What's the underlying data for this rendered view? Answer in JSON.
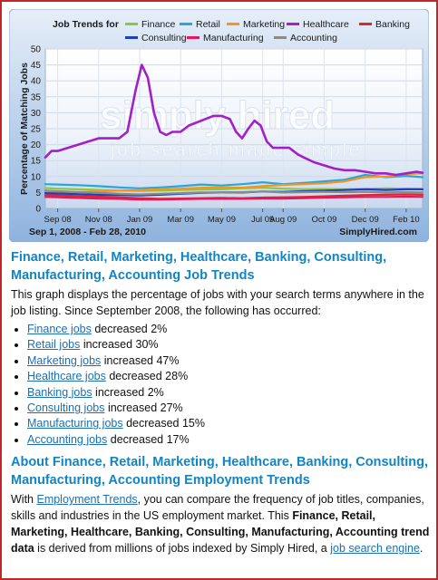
{
  "chart_data": {
    "type": "line",
    "legend_title": "Job Trends for",
    "legend_placement": "top",
    "ylabel": "Percentage of Matching Jobs",
    "ylim": [
      0,
      50
    ],
    "yticks": [
      0,
      5,
      10,
      15,
      20,
      25,
      30,
      35,
      40,
      45,
      50
    ],
    "x_tick_labels": [
      "Sep 08",
      "Nov 08",
      "Jan 09",
      "Mar 09",
      "May 09",
      "Jul 09",
      "Aug 09",
      "Oct 09",
      "Dec 09",
      "Feb 10"
    ],
    "x_tick_months": [
      0,
      2,
      4,
      6,
      8,
      10,
      11,
      13,
      15,
      17
    ],
    "xlim_months": [
      -0.6,
      17.8
    ],
    "date_range": "Sep 1, 2008 - Feb 28, 2010",
    "brand": "SimplyHired.com",
    "watermark": "simply hired",
    "watermark_tagline": "job search made simple",
    "grid": true,
    "series": [
      {
        "name": "Finance",
        "color": "#8dc63f",
        "x": [
          -0.6,
          0,
          1,
          2,
          3,
          4,
          5,
          6,
          7,
          8,
          9,
          10,
          11,
          12,
          13,
          14,
          15,
          16,
          17,
          17.8
        ],
        "values": [
          6.4,
          6.2,
          6.0,
          5.8,
          5.6,
          5.5,
          5.6,
          5.8,
          5.9,
          6.0,
          6.3,
          6.5,
          6.2,
          6.0,
          6.1,
          6.0,
          6.1,
          6.3,
          6.2,
          6.1
        ]
      },
      {
        "name": "Retail",
        "color": "#29a6d8",
        "x": [
          -0.6,
          0,
          1,
          2,
          3,
          4,
          5,
          6,
          7,
          8,
          9,
          10,
          11,
          12,
          13,
          14,
          15,
          16,
          17,
          17.8
        ],
        "values": [
          7.6,
          7.5,
          7.3,
          7.0,
          6.6,
          6.3,
          6.6,
          7.0,
          7.5,
          7.2,
          7.6,
          8.2,
          7.6,
          8.0,
          8.5,
          9.0,
          10.5,
          9.8,
          10.2,
          9.8
        ]
      },
      {
        "name": "Marketing",
        "color": "#f7941d",
        "x": [
          -0.6,
          0,
          1,
          2,
          3,
          4,
          5,
          6,
          7,
          8,
          9,
          10,
          11,
          12,
          13,
          14,
          15,
          16,
          17,
          17.8
        ],
        "values": [
          5.2,
          5.0,
          5.1,
          5.3,
          5.6,
          5.7,
          6.0,
          6.2,
          6.5,
          6.6,
          6.5,
          7.0,
          7.4,
          7.6,
          7.9,
          8.5,
          9.8,
          10.0,
          10.8,
          11.0
        ]
      },
      {
        "name": "Healthcare",
        "color": "#a31fc7",
        "x": [
          -0.6,
          -0.3,
          0,
          0.5,
          1,
          1.5,
          2,
          2.5,
          3,
          3.4,
          3.8,
          4.1,
          4.4,
          4.7,
          5.0,
          5.3,
          5.6,
          6.0,
          6.4,
          6.8,
          7.2,
          7.6,
          8.0,
          8.4,
          8.7,
          9.0,
          9.3,
          9.6,
          9.9,
          10.2,
          10.5,
          10.9,
          11.3,
          11.7,
          12.0,
          12.5,
          13.0,
          13.5,
          14.0,
          14.5,
          15.0,
          15.5,
          16.0,
          16.5,
          17.0,
          17.5,
          17.8
        ],
        "values": [
          16,
          18,
          18,
          19,
          20,
          21,
          22,
          22,
          22,
          24,
          37,
          45,
          41,
          30,
          24,
          23,
          24,
          24,
          26,
          27,
          28,
          29,
          29,
          28,
          24,
          22,
          25,
          27.5,
          26,
          21,
          19,
          19,
          19,
          17,
          16,
          14.5,
          13.5,
          12.5,
          12,
          12,
          11.5,
          11,
          11,
          10.5,
          11,
          11.5,
          11.2
        ]
      },
      {
        "name": "Banking",
        "color": "#d7282f",
        "x": [
          -0.6,
          0,
          1,
          2,
          3,
          4,
          5,
          6,
          7,
          8,
          9,
          10,
          11,
          12,
          13,
          14,
          15,
          16,
          17,
          17.8
        ],
        "values": [
          4.2,
          4.1,
          3.9,
          3.7,
          3.5,
          3.2,
          3.0,
          3.1,
          3.2,
          3.3,
          3.2,
          3.4,
          3.5,
          3.6,
          3.8,
          4.0,
          4.2,
          4.3,
          4.4,
          4.3
        ]
      },
      {
        "name": "Consulting",
        "color": "#1f3fbf",
        "x": [
          -0.6,
          0,
          1,
          2,
          3,
          4,
          5,
          6,
          7,
          8,
          9,
          10,
          11,
          12,
          13,
          14,
          15,
          16,
          17,
          17.8
        ],
        "values": [
          4.8,
          4.7,
          4.5,
          4.3,
          4.2,
          4.1,
          4.3,
          4.6,
          4.9,
          5.0,
          5.0,
          5.3,
          5.2,
          5.4,
          5.6,
          5.8,
          6.0,
          5.8,
          6.0,
          6.0
        ]
      },
      {
        "name": "Manufacturing",
        "color": "#e8175d",
        "x": [
          -0.6,
          0,
          1,
          2,
          3,
          4,
          5,
          6,
          7,
          8,
          9,
          10,
          11,
          12,
          13,
          14,
          15,
          16,
          17,
          17.8
        ],
        "values": [
          3.6,
          3.5,
          3.3,
          3.1,
          3.0,
          2.8,
          2.8,
          2.9,
          3.0,
          3.0,
          3.0,
          3.1,
          3.1,
          3.2,
          3.4,
          3.5,
          3.6,
          3.6,
          3.7,
          3.6
        ]
      },
      {
        "name": "Accounting",
        "color": "#8a8a8a",
        "x": [
          -0.6,
          0,
          1,
          2,
          3,
          4,
          5,
          6,
          7,
          8,
          9,
          10,
          11,
          12,
          13,
          14,
          15,
          16,
          17,
          17.8
        ],
        "values": [
          5.6,
          5.4,
          5.1,
          4.9,
          4.6,
          4.4,
          4.6,
          4.8,
          5.0,
          5.0,
          5.1,
          5.3,
          5.0,
          5.1,
          5.2,
          5.1,
          5.2,
          5.0,
          5.1,
          5.0
        ]
      }
    ]
  },
  "section1": {
    "title": "Finance, Retail, Marketing, Healthcare, Banking, Consulting, Manufacturing, Accounting Job Trends",
    "description": "This graph displays the percentage of jobs with your search terms anywhere in the job listing. Since September 2008, the following has occurred:",
    "items": [
      {
        "link": "Finance jobs",
        "text": " decreased 2%"
      },
      {
        "link": "Retail jobs",
        "text": " increased 30%"
      },
      {
        "link": "Marketing jobs",
        "text": " increased 47%"
      },
      {
        "link": "Healthcare jobs",
        "text": " decreased 28%"
      },
      {
        "link": "Banking jobs",
        "text": " increased 2%"
      },
      {
        "link": "Consulting jobs",
        "text": " increased 27%"
      },
      {
        "link": "Manufacturing jobs",
        "text": " decreased 15%"
      },
      {
        "link": "Accounting jobs",
        "text": " decreased 17%"
      }
    ]
  },
  "section2": {
    "title": "About Finance, Retail, Marketing, Healthcare, Banking, Consulting, Manufacturing, Accounting Employment Trends",
    "p_with": "With ",
    "p_link1": "Employment Trends",
    "p_mid": ", you can compare the frequency of job titles, companies, skills and industries in the US employment market. This ",
    "p_bold": "Finance, Retail, Marketing, Healthcare, Banking, Consulting, Manufacturing, Accounting trend data",
    "p_mid2": " is derived from millions of jobs indexed by Simply Hired, a ",
    "p_link2": "job search engine",
    "p_end": "."
  }
}
